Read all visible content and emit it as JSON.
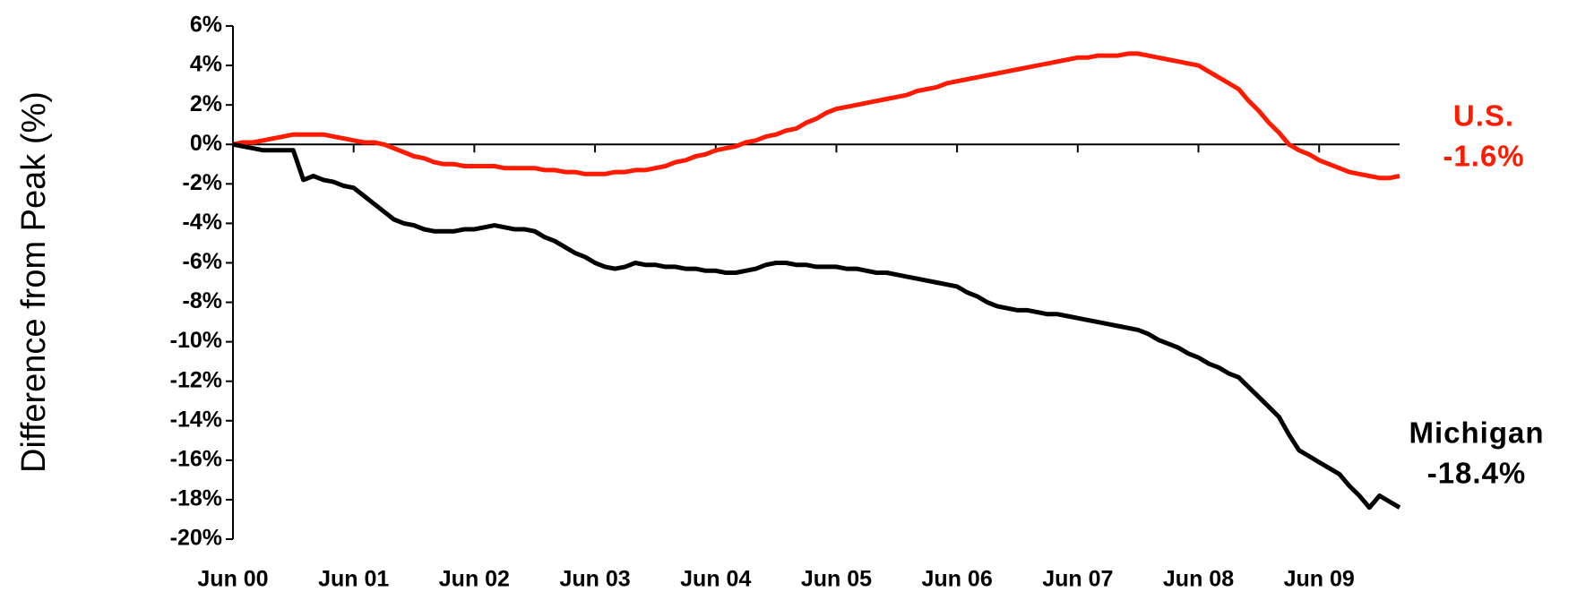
{
  "chart_data": {
    "type": "line",
    "y_label": "Difference from Peak (%)",
    "categories": [
      "Jun 00",
      null,
      null,
      null,
      null,
      null,
      null,
      null,
      null,
      null,
      null,
      null,
      "Jun 01",
      null,
      null,
      null,
      null,
      null,
      null,
      null,
      null,
      null,
      null,
      null,
      "Jun 02",
      null,
      null,
      null,
      null,
      null,
      null,
      null,
      null,
      null,
      null,
      null,
      "Jun 03",
      null,
      null,
      null,
      null,
      null,
      null,
      null,
      null,
      null,
      null,
      null,
      "Jun 04",
      null,
      null,
      null,
      null,
      null,
      null,
      null,
      null,
      null,
      null,
      null,
      "Jun 05",
      null,
      null,
      null,
      null,
      null,
      null,
      null,
      null,
      null,
      null,
      null,
      "Jun 06",
      null,
      null,
      null,
      null,
      null,
      null,
      null,
      null,
      null,
      null,
      null,
      "Jun 07",
      null,
      null,
      null,
      null,
      null,
      null,
      null,
      null,
      null,
      null,
      null,
      "Jun 08",
      null,
      null,
      null,
      null,
      null,
      null,
      null,
      null,
      null,
      null,
      null,
      "Jun 09",
      null,
      null,
      null,
      null,
      null,
      null,
      null,
      null
    ],
    "series": [
      {
        "name": "U.S.",
        "color": "#ff1a00",
        "end_label": "-1.6%",
        "values": [
          0,
          0.1,
          0.1,
          0.2,
          0.3,
          0.4,
          0.5,
          0.5,
          0.5,
          0.5,
          0.4,
          0.3,
          0.2,
          0.1,
          0.1,
          0,
          -0.2,
          -0.4,
          -0.6,
          -0.7,
          -0.9,
          -1.0,
          -1.0,
          -1.1,
          -1.1,
          -1.1,
          -1.1,
          -1.2,
          -1.2,
          -1.2,
          -1.2,
          -1.3,
          -1.3,
          -1.4,
          -1.4,
          -1.5,
          -1.5,
          -1.5,
          -1.4,
          -1.4,
          -1.3,
          -1.3,
          -1.2,
          -1.1,
          -0.9,
          -0.8,
          -0.6,
          -0.5,
          -0.3,
          -0.2,
          -0.1,
          0.1,
          0.2,
          0.4,
          0.5,
          0.7,
          0.8,
          1.1,
          1.3,
          1.6,
          1.8,
          1.9,
          2.0,
          2.1,
          2.2,
          2.3,
          2.4,
          2.5,
          2.7,
          2.8,
          2.9,
          3.1,
          3.2,
          3.3,
          3.4,
          3.5,
          3.6,
          3.7,
          3.8,
          3.9,
          4.0,
          4.1,
          4.2,
          4.3,
          4.4,
          4.4,
          4.5,
          4.5,
          4.5,
          4.6,
          4.6,
          4.5,
          4.4,
          4.3,
          4.2,
          4.1,
          4.0,
          3.7,
          3.4,
          3.1,
          2.8,
          2.2,
          1.7,
          1.1,
          0.6,
          0,
          -0.3,
          -0.5,
          -0.8,
          -1.0,
          -1.2,
          -1.4,
          -1.5,
          -1.6,
          -1.7,
          -1.7,
          -1.6
        ]
      },
      {
        "name": "Michigan",
        "color": "#000000",
        "end_label": "-18.4%",
        "values": [
          0,
          -0.1,
          -0.2,
          -0.3,
          -0.3,
          -0.3,
          -0.3,
          -1.8,
          -1.6,
          -1.8,
          -1.9,
          -2.1,
          -2.2,
          -2.6,
          -3.0,
          -3.4,
          -3.8,
          -4.0,
          -4.1,
          -4.3,
          -4.4,
          -4.4,
          -4.4,
          -4.3,
          -4.3,
          -4.2,
          -4.1,
          -4.2,
          -4.3,
          -4.3,
          -4.4,
          -4.7,
          -4.9,
          -5.2,
          -5.5,
          -5.7,
          -6.0,
          -6.2,
          -6.3,
          -6.2,
          -6.0,
          -6.1,
          -6.1,
          -6.2,
          -6.2,
          -6.3,
          -6.3,
          -6.4,
          -6.4,
          -6.5,
          -6.5,
          -6.4,
          -6.3,
          -6.1,
          -6.0,
          -6.0,
          -6.1,
          -6.1,
          -6.2,
          -6.2,
          -6.2,
          -6.3,
          -6.3,
          -6.4,
          -6.5,
          -6.5,
          -6.6,
          -6.7,
          -6.8,
          -6.9,
          -7.0,
          -7.1,
          -7.2,
          -7.5,
          -7.7,
          -8.0,
          -8.2,
          -8.3,
          -8.4,
          -8.4,
          -8.5,
          -8.6,
          -8.6,
          -8.7,
          -8.8,
          -8.9,
          -9.0,
          -9.1,
          -9.2,
          -9.3,
          -9.4,
          -9.6,
          -9.9,
          -10.1,
          -10.3,
          -10.6,
          -10.8,
          -11.1,
          -11.3,
          -11.6,
          -11.8,
          -12.3,
          -12.8,
          -13.3,
          -13.8,
          -14.7,
          -15.5,
          -15.8,
          -16.1,
          -16.4,
          -16.7,
          -17.3,
          -17.8,
          -18.4,
          -17.8,
          -18.1,
          -18.4
        ]
      }
    ],
    "ylim": [
      -20,
      6
    ],
    "yticks": [
      {
        "value": 6,
        "label": "6%"
      },
      {
        "value": 4,
        "label": "4%"
      },
      {
        "value": 2,
        "label": "2%"
      },
      {
        "value": 0,
        "label": "0%"
      },
      {
        "value": -2,
        "label": "-2%"
      },
      {
        "value": -4,
        "label": "-4%"
      },
      {
        "value": -6,
        "label": "-6%"
      },
      {
        "value": -8,
        "label": "-8%"
      },
      {
        "value": -10,
        "label": "-10%"
      },
      {
        "value": -12,
        "label": "-12%"
      },
      {
        "value": -14,
        "label": "-14%"
      },
      {
        "value": -16,
        "label": "-16%"
      },
      {
        "value": -18,
        "label": "-18%"
      },
      {
        "value": -20,
        "label": "-20%"
      }
    ],
    "grid": false
  }
}
